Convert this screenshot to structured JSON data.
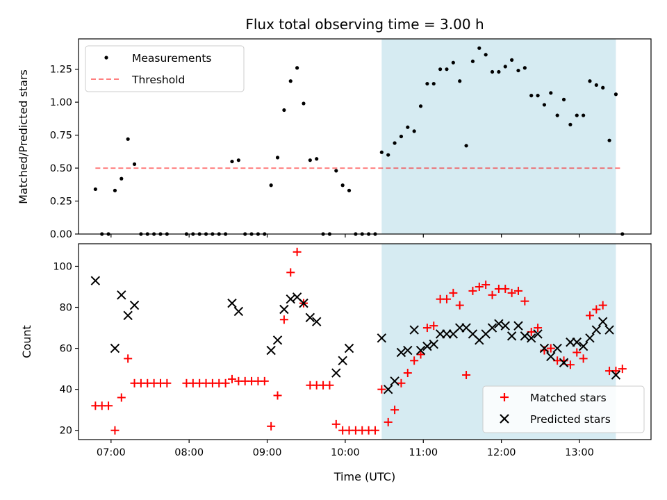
{
  "chart_data": [
    {
      "id": "ratio-panel",
      "type": "scatter",
      "title": "Flux total observing time = 3.00 h",
      "xlabel": "",
      "ylabel": "Matched/Predicted stars",
      "xlim": [
        "06:35",
        "13:55"
      ],
      "ylim": [
        0,
        1.48
      ],
      "x_ticks": [
        "07:00",
        "08:00",
        "09:00",
        "10:00",
        "11:00",
        "12:00",
        "13:00"
      ],
      "y_ticks": [
        "0.00",
        "0.25",
        "0.50",
        "0.75",
        "1.00",
        "1.25"
      ],
      "y_tick_values": [
        0,
        0.25,
        0.5,
        0.75,
        1.0,
        1.25
      ],
      "shaded_region": {
        "x_start": "10:28",
        "x_end": "13:28",
        "color": "#add8e6"
      },
      "threshold": {
        "name": "Threshold",
        "value": 0.5,
        "x_start": "06:48",
        "x_end": "13:33",
        "color": "#ff0000"
      },
      "legend": {
        "placement": "top-left",
        "entries": [
          {
            "label": "Measurements",
            "marker": "dot",
            "color": "#000000"
          },
          {
            "label": "Threshold",
            "marker": "dashed-line",
            "color": "#ff8080"
          }
        ]
      },
      "series": [
        {
          "name": "Measurements",
          "color": "#000000",
          "marker": "dot",
          "points": [
            [
              "06:48",
              0.34
            ],
            [
              "06:53",
              0
            ],
            [
              "06:58",
              0
            ],
            [
              "07:03",
              0.33
            ],
            [
              "07:08",
              0.42
            ],
            [
              "07:13",
              0.72
            ],
            [
              "07:18",
              0.53
            ],
            [
              "07:23",
              0
            ],
            [
              "07:28",
              0
            ],
            [
              "07:33",
              0
            ],
            [
              "07:38",
              0
            ],
            [
              "07:43",
              0
            ],
            [
              "07:58",
              0
            ],
            [
              "08:03",
              0
            ],
            [
              "08:08",
              0
            ],
            [
              "08:13",
              0
            ],
            [
              "08:18",
              0
            ],
            [
              "08:23",
              0
            ],
            [
              "08:28",
              0
            ],
            [
              "08:33",
              0.55
            ],
            [
              "08:38",
              0.56
            ],
            [
              "08:43",
              0
            ],
            [
              "08:48",
              0
            ],
            [
              "08:53",
              0
            ],
            [
              "08:58",
              0
            ],
            [
              "09:03",
              0.37
            ],
            [
              "09:08",
              0.58
            ],
            [
              "09:13",
              0.94
            ],
            [
              "09:18",
              1.16
            ],
            [
              "09:23",
              1.26
            ],
            [
              "09:28",
              0.99
            ],
            [
              "09:33",
              0.56
            ],
            [
              "09:38",
              0.57
            ],
            [
              "09:43",
              0
            ],
            [
              "09:48",
              0
            ],
            [
              "09:53",
              0.48
            ],
            [
              "09:58",
              0.37
            ],
            [
              "10:03",
              0.33
            ],
            [
              "10:08",
              0
            ],
            [
              "10:13",
              0
            ],
            [
              "10:18",
              0
            ],
            [
              "10:23",
              0
            ],
            [
              "10:28",
              0.62
            ],
            [
              "10:33",
              0.6
            ],
            [
              "10:38",
              0.69
            ],
            [
              "10:43",
              0.74
            ],
            [
              "10:48",
              0.81
            ],
            [
              "10:53",
              0.78
            ],
            [
              "10:58",
              0.97
            ],
            [
              "11:03",
              1.14
            ],
            [
              "11:08",
              1.14
            ],
            [
              "11:13",
              1.25
            ],
            [
              "11:18",
              1.25
            ],
            [
              "11:23",
              1.3
            ],
            [
              "11:28",
              1.16
            ],
            [
              "11:33",
              0.67
            ],
            [
              "11:38",
              1.31
            ],
            [
              "11:43",
              1.41
            ],
            [
              "11:48",
              1.36
            ],
            [
              "11:53",
              1.23
            ],
            [
              "11:58",
              1.23
            ],
            [
              "12:03",
              1.27
            ],
            [
              "12:08",
              1.32
            ],
            [
              "12:13",
              1.24
            ],
            [
              "12:18",
              1.26
            ],
            [
              "12:23",
              1.05
            ],
            [
              "12:28",
              1.05
            ],
            [
              "12:33",
              0.98
            ],
            [
              "12:38",
              1.07
            ],
            [
              "12:43",
              0.9
            ],
            [
              "12:48",
              1.02
            ],
            [
              "12:53",
              0.83
            ],
            [
              "12:58",
              0.9
            ],
            [
              "13:03",
              0.9
            ],
            [
              "13:08",
              1.16
            ],
            [
              "13:13",
              1.13
            ],
            [
              "13:18",
              1.11
            ],
            [
              "13:23",
              0.71
            ],
            [
              "13:28",
              1.06
            ],
            [
              "13:33",
              0
            ]
          ]
        }
      ]
    },
    {
      "id": "count-panel",
      "type": "scatter",
      "title": "",
      "xlabel": "Time (UTC)",
      "ylabel": "Count",
      "xlim": [
        "06:35",
        "13:55"
      ],
      "ylim": [
        15.5,
        111
      ],
      "x_ticks": [
        "07:00",
        "08:00",
        "09:00",
        "10:00",
        "11:00",
        "12:00",
        "13:00"
      ],
      "y_ticks": [
        "20",
        "40",
        "60",
        "80",
        "100"
      ],
      "y_tick_values": [
        20,
        40,
        60,
        80,
        100
      ],
      "shaded_region": {
        "x_start": "10:28",
        "x_end": "13:28",
        "color": "#add8e6"
      },
      "legend": {
        "placement": "bottom-right",
        "entries": [
          {
            "label": "Matched stars",
            "marker": "plus",
            "color": "#ff0000"
          },
          {
            "label": "Predicted stars",
            "marker": "x",
            "color": "#000000"
          }
        ]
      },
      "series": [
        {
          "name": "Matched stars",
          "color": "#ff0000",
          "marker": "plus",
          "points": [
            [
              "06:48",
              32
            ],
            [
              "06:53",
              32
            ],
            [
              "06:58",
              32
            ],
            [
              "07:03",
              20
            ],
            [
              "07:08",
              36
            ],
            [
              "07:13",
              55
            ],
            [
              "07:18",
              43
            ],
            [
              "07:23",
              43
            ],
            [
              "07:28",
              43
            ],
            [
              "07:33",
              43
            ],
            [
              "07:38",
              43
            ],
            [
              "07:43",
              43
            ],
            [
              "07:58",
              43
            ],
            [
              "08:03",
              43
            ],
            [
              "08:08",
              43
            ],
            [
              "08:13",
              43
            ],
            [
              "08:18",
              43
            ],
            [
              "08:23",
              43
            ],
            [
              "08:28",
              43
            ],
            [
              "08:33",
              45
            ],
            [
              "08:38",
              44
            ],
            [
              "08:43",
              44
            ],
            [
              "08:48",
              44
            ],
            [
              "08:53",
              44
            ],
            [
              "08:58",
              44
            ],
            [
              "09:03",
              22
            ],
            [
              "09:08",
              37
            ],
            [
              "09:13",
              74
            ],
            [
              "09:18",
              97
            ],
            [
              "09:23",
              107
            ],
            [
              "09:28",
              82
            ],
            [
              "09:33",
              42
            ],
            [
              "09:38",
              42
            ],
            [
              "09:43",
              42
            ],
            [
              "09:48",
              42
            ],
            [
              "09:53",
              23
            ],
            [
              "09:58",
              20
            ],
            [
              "10:03",
              20
            ],
            [
              "10:08",
              20
            ],
            [
              "10:13",
              20
            ],
            [
              "10:18",
              20
            ],
            [
              "10:23",
              20
            ],
            [
              "10:28",
              40
            ],
            [
              "10:33",
              24
            ],
            [
              "10:38",
              30
            ],
            [
              "10:43",
              43
            ],
            [
              "10:48",
              48
            ],
            [
              "10:53",
              54
            ],
            [
              "10:58",
              57
            ],
            [
              "11:03",
              70
            ],
            [
              "11:08",
              71
            ],
            [
              "11:13",
              84
            ],
            [
              "11:18",
              84
            ],
            [
              "11:23",
              87
            ],
            [
              "11:28",
              81
            ],
            [
              "11:33",
              47
            ],
            [
              "11:38",
              88
            ],
            [
              "11:43",
              90
            ],
            [
              "11:48",
              91
            ],
            [
              "11:53",
              86
            ],
            [
              "11:58",
              89
            ],
            [
              "12:03",
              89
            ],
            [
              "12:08",
              87
            ],
            [
              "12:13",
              88
            ],
            [
              "12:18",
              83
            ],
            [
              "12:23",
              68
            ],
            [
              "12:28",
              70
            ],
            [
              "12:33",
              59
            ],
            [
              "12:38",
              60
            ],
            [
              "12:43",
              54
            ],
            [
              "12:48",
              54
            ],
            [
              "12:53",
              52
            ],
            [
              "12:58",
              58
            ],
            [
              "13:03",
              55
            ],
            [
              "13:08",
              76
            ],
            [
              "13:13",
              79
            ],
            [
              "13:18",
              81
            ],
            [
              "13:23",
              49
            ],
            [
              "13:28",
              49
            ],
            [
              "13:33",
              50
            ]
          ]
        },
        {
          "name": "Predicted stars",
          "color": "#000000",
          "marker": "x",
          "points": [
            [
              "06:48",
              93
            ],
            [
              "07:03",
              60
            ],
            [
              "07:08",
              86
            ],
            [
              "07:13",
              76
            ],
            [
              "07:18",
              81
            ],
            [
              "08:33",
              82
            ],
            [
              "08:38",
              78
            ],
            [
              "09:03",
              59
            ],
            [
              "09:08",
              64
            ],
            [
              "09:13",
              79
            ],
            [
              "09:18",
              84
            ],
            [
              "09:23",
              85
            ],
            [
              "09:28",
              82
            ],
            [
              "09:33",
              75
            ],
            [
              "09:38",
              73
            ],
            [
              "09:53",
              48
            ],
            [
              "09:58",
              54
            ],
            [
              "10:03",
              60
            ],
            [
              "10:28",
              65
            ],
            [
              "10:33",
              40
            ],
            [
              "10:38",
              44
            ],
            [
              "10:43",
              58
            ],
            [
              "10:48",
              59
            ],
            [
              "10:53",
              69
            ],
            [
              "10:58",
              59
            ],
            [
              "11:03",
              61
            ],
            [
              "11:08",
              62
            ],
            [
              "11:13",
              67
            ],
            [
              "11:18",
              67
            ],
            [
              "11:23",
              67
            ],
            [
              "11:28",
              70
            ],
            [
              "11:33",
              70
            ],
            [
              "11:38",
              67
            ],
            [
              "11:43",
              64
            ],
            [
              "11:48",
              67
            ],
            [
              "11:53",
              70
            ],
            [
              "11:58",
              72
            ],
            [
              "12:03",
              71
            ],
            [
              "12:08",
              66
            ],
            [
              "12:13",
              71
            ],
            [
              "12:18",
              66
            ],
            [
              "12:23",
              65
            ],
            [
              "12:28",
              67
            ],
            [
              "12:33",
              60
            ],
            [
              "12:38",
              56
            ],
            [
              "12:43",
              60
            ],
            [
              "12:48",
              53
            ],
            [
              "12:53",
              63
            ],
            [
              "12:58",
              63
            ],
            [
              "13:03",
              61
            ],
            [
              "13:08",
              65
            ],
            [
              "13:13",
              69
            ],
            [
              "13:18",
              73
            ],
            [
              "13:23",
              69
            ],
            [
              "13:28",
              47
            ]
          ]
        }
      ]
    }
  ]
}
